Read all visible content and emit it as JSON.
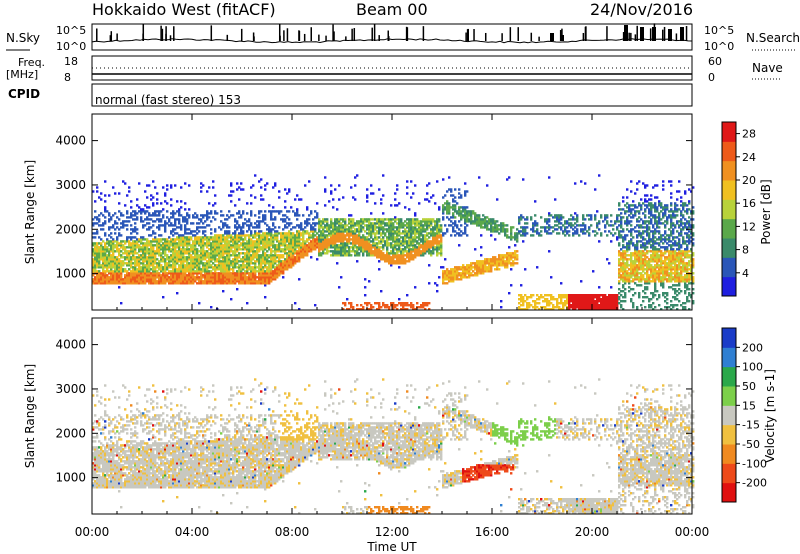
{
  "header": {
    "station": "Hokkaido West (fitACF)",
    "beam": "Beam 00",
    "date": "24/Nov/2016"
  },
  "status_panels": {
    "nsky": {
      "label": "N.Sky",
      "scale_top": "10^5",
      "scale_bottom": "10^0"
    },
    "nsearch": {
      "label": "N.Search",
      "scale_top": "10^5",
      "scale_bottom": "10^0"
    },
    "freq": {
      "label_line1": "Freq.",
      "label_line2": "[MHz]",
      "scale_top": "18",
      "scale_bottom": "8"
    },
    "nave": {
      "label": "Nave",
      "scale_top": "60",
      "scale_bottom": "0"
    },
    "cpid": {
      "label": "CPID",
      "value": "normal (fast stereo) 153"
    }
  },
  "chart_data": [
    {
      "type": "heatmap",
      "name": "power",
      "ylabel": "Slant Range [km]",
      "yticks": [
        "1000",
        "2000",
        "3000",
        "4000"
      ],
      "ylim": [
        180,
        4600
      ],
      "xlim": [
        0,
        24
      ],
      "colorbar": {
        "label": "Power [dB]",
        "ticks": [
          "4",
          "8",
          "12",
          "16",
          "20",
          "24",
          "28"
        ],
        "range": [
          0,
          30
        ],
        "colors": [
          "#1f1fe0",
          "#2a56b8",
          "#3a8a6a",
          "#5aa84a",
          "#b8d23a",
          "#f0c020",
          "#f09020",
          "#ee5a1a",
          "#e01818"
        ]
      },
      "bands": [
        {
          "t0": 0.0,
          "t1": 1.0,
          "r0": 700,
          "r1": 2400,
          "level": "mixed"
        },
        {
          "t0": 0.0,
          "t1": 7.5,
          "r0": 780,
          "r1": 1000,
          "level": "strong"
        },
        {
          "t0": 7.5,
          "t1": 9.0,
          "r0": 1000,
          "r1": 1900,
          "level": "strong"
        },
        {
          "t0": 9.0,
          "t1": 14.0,
          "r0": 1300,
          "r1": 2200,
          "level": "medium"
        },
        {
          "t0": 14.5,
          "t1": 16.5,
          "r0": 700,
          "r1": 1100,
          "level": "strong"
        },
        {
          "t0": 19.5,
          "t1": 20.8,
          "r0": 200,
          "r1": 500,
          "level": "strongest"
        },
        {
          "t0": 22.0,
          "t1": 24.0,
          "r0": 800,
          "r1": 1600,
          "level": "strong"
        }
      ]
    },
    {
      "type": "heatmap",
      "name": "velocity",
      "ylabel": "Slant Range [km]",
      "yticks": [
        "1000",
        "2000",
        "3000",
        "4000"
      ],
      "ylim": [
        180,
        4600
      ],
      "xlim": [
        0,
        24
      ],
      "colorbar": {
        "label": "Velocity [m s-1]",
        "ticks": [
          "200",
          "100",
          "50",
          "15",
          "-15",
          "-50",
          "-100",
          "-200"
        ],
        "colors": [
          "#1a3cc8",
          "#2f7fd2",
          "#2aa84a",
          "#7ccf4a",
          "#c8c8c0",
          "#f0c040",
          "#f08a20",
          "#ee4a1a",
          "#e01010"
        ]
      }
    }
  ],
  "xaxis": {
    "label": "Time UT",
    "ticks": [
      "00:00",
      "04:00",
      "08:00",
      "12:00",
      "16:00",
      "20:00",
      "00:00"
    ]
  }
}
